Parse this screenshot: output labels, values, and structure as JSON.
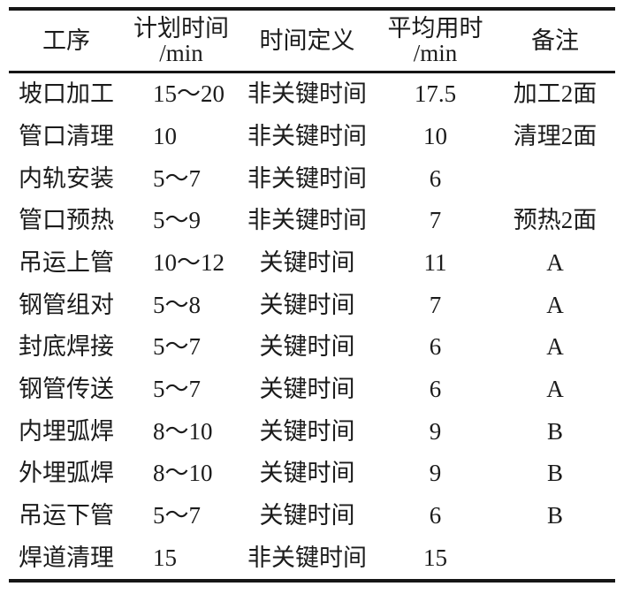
{
  "table": {
    "header": {
      "col1": "工序",
      "col2_line1": "计划时间",
      "col2_line2": "/min",
      "col3": "时间定义",
      "col4_line1": "平均用时",
      "col4_line2": "/min",
      "col5": "备注"
    },
    "rows": [
      {
        "process": "坡口加工",
        "planned": "15～20",
        "definition": "非关键时间",
        "average": "17.5",
        "note": "加工2面"
      },
      {
        "process": "管口清理",
        "planned": "10",
        "definition": "非关键时间",
        "average": "10",
        "note": "清理2面"
      },
      {
        "process": "内轨安装",
        "planned": "5～7",
        "definition": "非关键时间",
        "average": "6",
        "note": ""
      },
      {
        "process": "管口预热",
        "planned": "5～9",
        "definition": "非关键时间",
        "average": "7",
        "note": "预热2面"
      },
      {
        "process": "吊运上管",
        "planned": "10～12",
        "definition": "关键时间",
        "average": "11",
        "note": "A"
      },
      {
        "process": "钢管组对",
        "planned": "5～8",
        "definition": "关键时间",
        "average": "7",
        "note": "A"
      },
      {
        "process": "封底焊接",
        "planned": "5～7",
        "definition": "关键时间",
        "average": "6",
        "note": "A"
      },
      {
        "process": "钢管传送",
        "planned": "5～7",
        "definition": "关键时间",
        "average": "6",
        "note": "A"
      },
      {
        "process": "内埋弧焊",
        "planned": "8～10",
        "definition": "关键时间",
        "average": "9",
        "note": "B"
      },
      {
        "process": "外埋弧焊",
        "planned": "8～10",
        "definition": "关键时间",
        "average": "9",
        "note": "B"
      },
      {
        "process": "吊运下管",
        "planned": "5～7",
        "definition": "关键时间",
        "average": "6",
        "note": "B"
      },
      {
        "process": "焊道清理",
        "planned": "15",
        "definition": "非关键时间",
        "average": "15",
        "note": ""
      }
    ],
    "line_color": "#161616",
    "text_color": "#1b1b1b"
  }
}
